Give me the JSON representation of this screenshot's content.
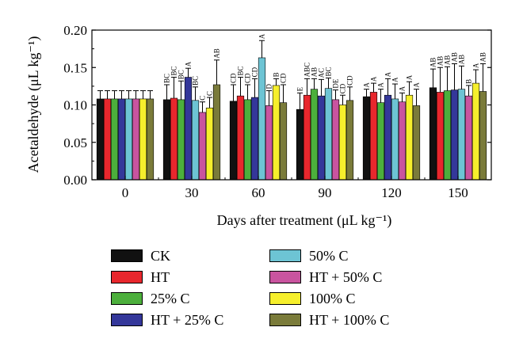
{
  "chart_data": {
    "type": "bar",
    "xlabel": "Days after treatment (μL kg⁻¹)",
    "ylabel": "Acetaldehyde (μL kg⁻¹)",
    "title": "",
    "categories": [
      "0",
      "30",
      "60",
      "90",
      "120",
      "150"
    ],
    "ylim": [
      0,
      0.2
    ],
    "yticks": [
      "0.00",
      "0.05",
      "0.10",
      "0.15",
      "0.20"
    ],
    "grid": false,
    "legend_position": "bottom",
    "series": [
      {
        "name": "CK",
        "color": "#111111",
        "values": [
          0.108,
          0.107,
          0.105,
          0.094,
          0.111,
          0.123
        ],
        "errors": [
          0.011,
          0.02,
          0.022,
          0.022,
          0.01,
          0.025
        ],
        "labels": [
          "",
          "BC",
          "CD",
          "E",
          "A",
          "AB"
        ]
      },
      {
        "name": "HT",
        "color": "#e8272d",
        "values": [
          0.108,
          0.109,
          0.112,
          0.113,
          0.117,
          0.117
        ],
        "errors": [
          0.011,
          0.028,
          0.025,
          0.022,
          0.012,
          0.033
        ],
        "labels": [
          "",
          "BC",
          "BC",
          "ABC",
          "A",
          "AB"
        ]
      },
      {
        "name": "25% C",
        "color": "#4caf3c",
        "values": [
          0.108,
          0.107,
          0.107,
          0.121,
          0.103,
          0.119
        ],
        "errors": [
          0.011,
          0.025,
          0.02,
          0.014,
          0.018,
          0.032
        ],
        "labels": [
          "",
          "BC",
          "CD",
          "AB",
          "A",
          "AB"
        ]
      },
      {
        "name": "HT + 25% C",
        "color": "#34379a",
        "values": [
          0.108,
          0.137,
          0.11,
          0.112,
          0.113,
          0.12
        ],
        "errors": [
          0.011,
          0.012,
          0.025,
          0.022,
          0.022,
          0.035
        ],
        "labels": [
          "",
          "A",
          "CD",
          "AC",
          "A",
          "AB"
        ]
      },
      {
        "name": "50% C",
        "color": "#6dc4d4",
        "values": [
          0.108,
          0.106,
          0.163,
          0.122,
          0.108,
          0.121
        ],
        "errors": [
          0.011,
          0.018,
          0.023,
          0.014,
          0.02,
          0.031
        ],
        "labels": [
          "",
          "BC",
          "A",
          "BC",
          "A",
          "AB"
        ]
      },
      {
        "name": "HT + 50% C",
        "color": "#c9549f",
        "values": [
          0.108,
          0.09,
          0.099,
          0.107,
          0.104,
          0.112
        ],
        "errors": [
          0.011,
          0.014,
          0.02,
          0.013,
          0.012,
          0.014
        ],
        "labels": [
          "",
          "C",
          "D",
          "DE",
          "A",
          "B"
        ]
      },
      {
        "name": "100% C",
        "color": "#f6ef2c",
        "values": [
          0.108,
          0.096,
          0.126,
          0.1,
          0.113,
          0.129
        ],
        "errors": [
          0.011,
          0.014,
          0.009,
          0.013,
          0.018,
          0.018
        ],
        "labels": [
          "",
          "C",
          "B",
          "CD",
          "A",
          "A"
        ]
      },
      {
        "name": "HT + 100% C",
        "color": "#7a7b3a",
        "values": [
          0.108,
          0.127,
          0.103,
          0.106,
          0.099,
          0.118
        ],
        "errors": [
          0.011,
          0.033,
          0.024,
          0.018,
          0.022,
          0.037
        ],
        "labels": [
          "",
          "AB",
          "CD",
          "CD",
          "A",
          "AB"
        ]
      }
    ]
  }
}
